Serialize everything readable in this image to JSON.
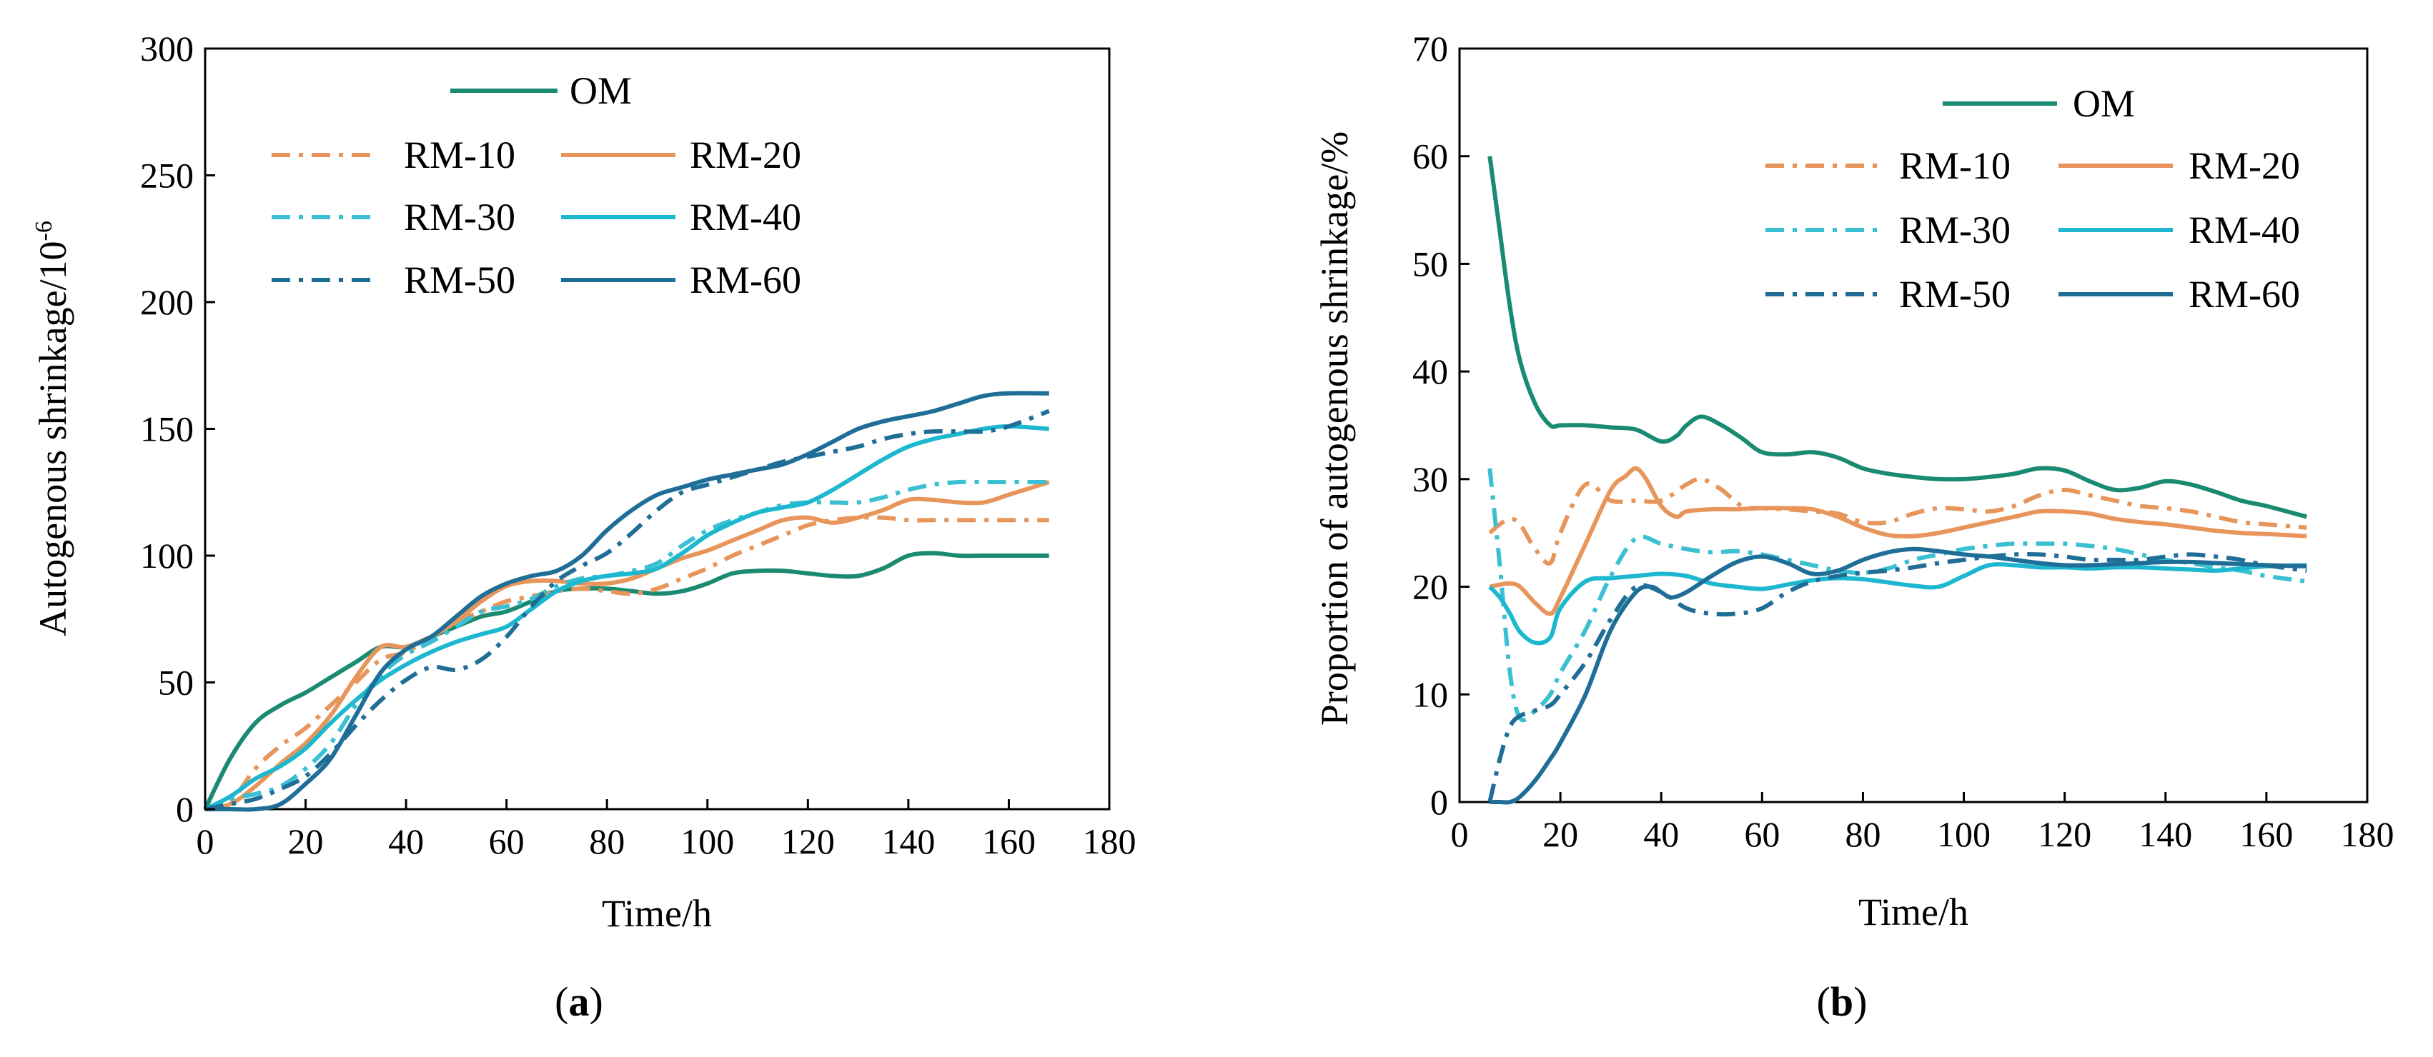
{
  "chart_data": [
    {
      "type": "line",
      "panel_label": "a",
      "xlabel": "Time/h",
      "ylabel": "Autogenous shrinkage/10",
      "ylabel_superscript": "-6",
      "xlim": [
        0,
        180
      ],
      "ylim": [
        0,
        300
      ],
      "xticks": [
        0,
        20,
        40,
        60,
        80,
        100,
        120,
        140,
        160,
        180
      ],
      "yticks": [
        0,
        50,
        100,
        150,
        200,
        250,
        300
      ],
      "grid": false,
      "legend_placement": "top-left",
      "series": [
        {
          "name": "OM",
          "color": "#1a8a72",
          "dash": "solid",
          "x": [
            0,
            5,
            10,
            15,
            20,
            25,
            30,
            35,
            40,
            45,
            50,
            55,
            60,
            65,
            70,
            75,
            80,
            85,
            90,
            95,
            100,
            105,
            110,
            115,
            120,
            125,
            130,
            135,
            140,
            145,
            150,
            155,
            160,
            168
          ],
          "y": [
            0,
            20,
            34,
            41,
            46,
            52,
            58,
            64,
            64,
            68,
            72,
            76,
            78,
            82,
            86,
            87,
            87,
            86,
            85,
            86,
            89,
            93,
            94,
            94,
            93,
            92,
            92,
            95,
            100,
            101,
            100,
            100,
            100,
            100
          ]
        },
        {
          "name": "RM-10",
          "color": "#e8955b",
          "dash": "dashdot",
          "x": [
            0,
            5,
            10,
            15,
            20,
            25,
            30,
            35,
            40,
            45,
            50,
            55,
            60,
            65,
            70,
            75,
            80,
            85,
            90,
            95,
            100,
            105,
            110,
            115,
            120,
            125,
            130,
            135,
            140,
            145,
            150,
            155,
            160,
            168
          ],
          "y": [
            0,
            3,
            16,
            25,
            32,
            41,
            50,
            59,
            62,
            68,
            74,
            78,
            82,
            84,
            86,
            87,
            86,
            85,
            87,
            91,
            95,
            100,
            104,
            108,
            112,
            114,
            115,
            115,
            114,
            114,
            114,
            114,
            114,
            114
          ]
        },
        {
          "name": "RM-20",
          "color": "#e8955b",
          "dash": "solid",
          "x": [
            0,
            5,
            10,
            15,
            20,
            25,
            30,
            35,
            40,
            45,
            50,
            55,
            60,
            65,
            70,
            75,
            80,
            85,
            90,
            95,
            100,
            105,
            110,
            115,
            120,
            125,
            130,
            135,
            140,
            145,
            150,
            155,
            160,
            168
          ],
          "y": [
            0,
            2,
            9,
            18,
            26,
            37,
            52,
            64,
            64,
            68,
            74,
            82,
            88,
            90,
            90,
            89,
            89,
            91,
            95,
            99,
            102,
            106,
            110,
            114,
            115,
            113,
            115,
            118,
            122,
            122,
            121,
            121,
            124,
            129
          ]
        },
        {
          "name": "RM-30",
          "color": "#3bbfd2",
          "dash": "dashdot",
          "x": [
            0,
            5,
            10,
            15,
            20,
            25,
            30,
            35,
            40,
            45,
            50,
            55,
            60,
            65,
            70,
            75,
            80,
            85,
            90,
            95,
            100,
            105,
            110,
            115,
            120,
            125,
            130,
            135,
            140,
            145,
            150,
            155,
            160,
            168
          ],
          "y": [
            0,
            4,
            6,
            9,
            16,
            26,
            41,
            53,
            61,
            66,
            72,
            78,
            80,
            83,
            88,
            91,
            92,
            94,
            97,
            104,
            110,
            114,
            117,
            120,
            121,
            121,
            121,
            123,
            126,
            128,
            129,
            129,
            129,
            129
          ]
        },
        {
          "name": "RM-40",
          "color": "#1db8cf",
          "dash": "solid",
          "x": [
            0,
            5,
            10,
            15,
            20,
            25,
            30,
            35,
            40,
            45,
            50,
            55,
            60,
            65,
            70,
            75,
            80,
            85,
            90,
            95,
            100,
            105,
            110,
            115,
            120,
            125,
            130,
            135,
            140,
            145,
            150,
            155,
            160,
            168
          ],
          "y": [
            0,
            5,
            12,
            17,
            24,
            34,
            43,
            51,
            57,
            62,
            66,
            69,
            72,
            79,
            86,
            90,
            92,
            93,
            95,
            101,
            108,
            113,
            117,
            119,
            121,
            126,
            132,
            138,
            143,
            146,
            148,
            150,
            151,
            150
          ]
        },
        {
          "name": "RM-50",
          "color": "#1f6e97",
          "dash": "dashdot",
          "x": [
            0,
            5,
            10,
            15,
            20,
            25,
            30,
            35,
            40,
            45,
            50,
            55,
            60,
            65,
            70,
            75,
            80,
            85,
            90,
            95,
            100,
            105,
            110,
            115,
            120,
            125,
            130,
            135,
            140,
            145,
            150,
            155,
            160,
            168
          ],
          "y": [
            0,
            2,
            4,
            8,
            13,
            22,
            33,
            43,
            51,
            56,
            55,
            59,
            68,
            80,
            90,
            96,
            101,
            109,
            118,
            125,
            128,
            131,
            134,
            137,
            139,
            141,
            143,
            146,
            148,
            149,
            149,
            149,
            151,
            157
          ]
        },
        {
          "name": "RM-60",
          "color": "#1f6e97",
          "dash": "solid",
          "x": [
            0,
            5,
            10,
            15,
            20,
            25,
            30,
            35,
            40,
            45,
            50,
            55,
            60,
            65,
            70,
            75,
            80,
            85,
            90,
            95,
            100,
            105,
            110,
            115,
            120,
            125,
            130,
            135,
            140,
            145,
            150,
            155,
            160,
            168
          ],
          "y": [
            0,
            0,
            0,
            2,
            10,
            20,
            37,
            54,
            63,
            68,
            76,
            84,
            89,
            92,
            94,
            100,
            110,
            118,
            124,
            127,
            130,
            132,
            134,
            136,
            140,
            145,
            150,
            153,
            155,
            157,
            160,
            163,
            164,
            164
          ]
        }
      ]
    },
    {
      "type": "line",
      "panel_label": "b",
      "xlabel": "Time/h",
      "ylabel": "Proportion of autogenous shrinkage/%",
      "xlim": [
        0,
        180
      ],
      "ylim": [
        0,
        70
      ],
      "xticks": [
        0,
        20,
        40,
        60,
        80,
        100,
        120,
        140,
        160,
        180
      ],
      "yticks": [
        0,
        10,
        20,
        30,
        40,
        50,
        60,
        70
      ],
      "grid": false,
      "legend_placement": "top-right",
      "series": [
        {
          "name": "OM",
          "color": "#1a8a72",
          "dash": "solid",
          "x": [
            6,
            8,
            10,
            12,
            15,
            18,
            20,
            25,
            30,
            35,
            40,
            43,
            45,
            48,
            52,
            56,
            60,
            65,
            70,
            75,
            80,
            85,
            90,
            95,
            100,
            105,
            110,
            115,
            120,
            125,
            130,
            135,
            140,
            145,
            150,
            155,
            160,
            168
          ],
          "y": [
            60,
            53,
            46,
            41,
            37,
            35,
            35,
            35,
            34.8,
            34.6,
            33.5,
            34,
            35,
            35.8,
            35,
            33.8,
            32.5,
            32.3,
            32.5,
            32,
            31,
            30.5,
            30.2,
            30,
            30,
            30.2,
            30.5,
            31,
            30.8,
            29.8,
            29,
            29.2,
            29.8,
            29.5,
            28.8,
            28,
            27.5,
            26.5
          ]
        },
        {
          "name": "RM-10",
          "color": "#e8955b",
          "dash": "dashdot",
          "x": [
            6,
            8,
            10,
            12,
            15,
            18,
            20,
            25,
            30,
            35,
            40,
            45,
            48,
            52,
            56,
            60,
            65,
            70,
            75,
            80,
            85,
            90,
            95,
            100,
            105,
            110,
            115,
            120,
            125,
            130,
            135,
            140,
            145,
            150,
            155,
            160,
            168
          ],
          "y": [
            25,
            25.8,
            26.3,
            25.8,
            23.5,
            22.2,
            25,
            29.5,
            28,
            28,
            28,
            29.5,
            30,
            29,
            27.5,
            27.3,
            27.2,
            27,
            26.8,
            26,
            26,
            26.8,
            27.3,
            27.2,
            27,
            27.5,
            28.5,
            29,
            28.5,
            28,
            27.5,
            27.3,
            27,
            26.5,
            26,
            25.8,
            25.5
          ]
        },
        {
          "name": "RM-20",
          "color": "#e8955b",
          "dash": "solid",
          "x": [
            6,
            8,
            10,
            12,
            15,
            18,
            20,
            25,
            30,
            33,
            35,
            37,
            40,
            43,
            45,
            50,
            55,
            60,
            65,
            70,
            75,
            80,
            85,
            90,
            95,
            100,
            105,
            110,
            115,
            120,
            125,
            130,
            135,
            140,
            145,
            150,
            155,
            160,
            168
          ],
          "y": [
            20,
            20.2,
            20.3,
            20,
            18.5,
            17.5,
            19,
            24,
            29,
            30.3,
            31,
            30,
            27.5,
            26.5,
            27,
            27.2,
            27.2,
            27.3,
            27.3,
            27.2,
            26.5,
            25.5,
            24.8,
            24.7,
            25,
            25.5,
            26,
            26.5,
            27,
            27,
            26.8,
            26.3,
            26,
            25.8,
            25.5,
            25.2,
            25,
            24.9,
            24.7
          ]
        },
        {
          "name": "RM-30",
          "color": "#3bbfd2",
          "dash": "dashdot",
          "x": [
            6,
            8,
            10,
            12,
            15,
            18,
            20,
            25,
            30,
            35,
            40,
            45,
            50,
            55,
            60,
            65,
            70,
            75,
            80,
            85,
            90,
            95,
            100,
            105,
            110,
            115,
            120,
            125,
            130,
            135,
            140,
            145,
            150,
            155,
            160,
            168
          ],
          "y": [
            31,
            22,
            12,
            7.8,
            8.5,
            10,
            12,
            16,
            21,
            24.5,
            24,
            23.5,
            23.2,
            23.3,
            23,
            22.5,
            22,
            21.5,
            21.3,
            21.7,
            22.5,
            23,
            23.5,
            23.8,
            24,
            24,
            24,
            23.8,
            23.5,
            23,
            22.5,
            22.2,
            21.8,
            21.5,
            21,
            20.5
          ]
        },
        {
          "name": "RM-40",
          "color": "#1db8cf",
          "dash": "solid",
          "x": [
            6,
            8,
            10,
            12,
            15,
            18,
            20,
            25,
            30,
            35,
            40,
            45,
            50,
            55,
            60,
            65,
            70,
            75,
            80,
            85,
            90,
            95,
            100,
            105,
            110,
            115,
            120,
            125,
            130,
            135,
            140,
            145,
            150,
            155,
            160,
            168
          ],
          "y": [
            20,
            19,
            17.5,
            15.8,
            14.8,
            15.3,
            18,
            20.5,
            20.8,
            21,
            21.2,
            21,
            20.3,
            20,
            19.8,
            20.2,
            20.6,
            20.8,
            20.7,
            20.4,
            20.1,
            20,
            21,
            22,
            22,
            21.8,
            21.8,
            21.7,
            21.8,
            21.8,
            21.7,
            21.6,
            21.5,
            21.7,
            21.9,
            22
          ]
        },
        {
          "name": "RM-50",
          "color": "#1f6e97",
          "dash": "dashdot",
          "x": [
            6,
            8,
            10,
            12,
            15,
            18,
            20,
            25,
            30,
            35,
            40,
            45,
            50,
            55,
            60,
            65,
            70,
            75,
            80,
            85,
            90,
            95,
            100,
            105,
            110,
            115,
            120,
            125,
            130,
            135,
            140,
            145,
            150,
            155,
            160,
            168
          ],
          "y": [
            0,
            4,
            7,
            8,
            8.5,
            9,
            10,
            13,
            17,
            20,
            19.5,
            18,
            17.5,
            17.5,
            18,
            19.5,
            20.5,
            21,
            21.3,
            21.5,
            21.8,
            22.2,
            22.5,
            22.8,
            23,
            23,
            22.8,
            22.5,
            22.5,
            22.5,
            22.8,
            23,
            22.8,
            22.5,
            22,
            21.5
          ]
        },
        {
          "name": "RM-60",
          "color": "#1f6e97",
          "dash": "solid",
          "x": [
            6,
            8,
            10,
            12,
            15,
            18,
            20,
            25,
            30,
            35,
            38,
            40,
            42,
            45,
            50,
            55,
            60,
            65,
            70,
            75,
            80,
            85,
            90,
            95,
            100,
            105,
            110,
            115,
            120,
            125,
            130,
            135,
            140,
            145,
            150,
            155,
            160,
            168
          ],
          "y": [
            0,
            0,
            0,
            0.5,
            2,
            4,
            5.5,
            10,
            16,
            19.5,
            20,
            19.5,
            19,
            19.5,
            21,
            22.3,
            22.8,
            22.2,
            21.2,
            21.5,
            22.5,
            23.2,
            23.5,
            23.3,
            23,
            22.8,
            22.5,
            22.2,
            22,
            22,
            22.1,
            22.2,
            22.3,
            22.3,
            22.2,
            22.1,
            22,
            21.9
          ]
        }
      ]
    }
  ]
}
